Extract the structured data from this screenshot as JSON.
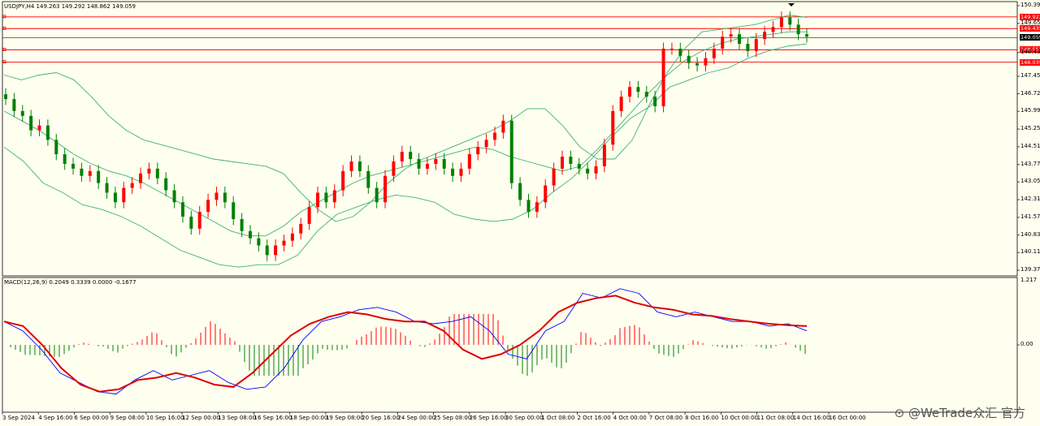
{
  "chart": {
    "title": "USDJPY,H4  149.263 149.292 148.862 149.059",
    "macd_title": "MACD(12,26,9) 0.2049 0.3339 0.0000 -0.1677",
    "watermark": "⊙ @WeTrade众汇 官方"
  },
  "colors": {
    "background": "#fffff0",
    "up_candle": "#ff0000",
    "down_candle": "#008000",
    "bands": "#3cb371",
    "hline": "#ff0000",
    "macd_line": "#0000ff",
    "signal_line": "#dd0000"
  },
  "chart_data": [
    {
      "type": "candlestick",
      "symbol": "USDJPY",
      "timeframe": "H4",
      "ylim": [
        139.37,
        150.39
      ],
      "y_ticks": [
        "150.390",
        "149.650",
        "148.435",
        "147.450",
        "146.720",
        "145.990",
        "145.250",
        "144.510",
        "143.770",
        "143.050",
        "142.310",
        "141.570",
        "140.830",
        "140.110",
        "139.370"
      ],
      "price_labels": [
        {
          "text": "149.922",
          "value": 149.922,
          "kind": "red"
        },
        {
          "text": "149.435",
          "value": 149.435,
          "kind": "red"
        },
        {
          "text": "149.059",
          "value": 149.059,
          "kind": "black"
        },
        {
          "text": "148.552",
          "value": 148.552,
          "kind": "red"
        },
        {
          "text": "148.039",
          "value": 148.039,
          "kind": "red"
        }
      ],
      "x_ticks": [
        "3 Sep 2024",
        "4 Sep 16:00",
        "6 Sep 00:00",
        "9 Sep 08:00",
        "10 Sep 16:00",
        "12 Sep 00:00",
        "13 Sep 08:00",
        "16 Sep 16:00",
        "18 Sep 00:00",
        "19 Sep 08:00",
        "20 Sep 16:00",
        "24 Sep 00:00",
        "25 Sep 08:00",
        "26 Sep 16:00",
        "30 Sep 00:00",
        "1 Oct 08:00",
        "2 Oct 16:00",
        "4 Oct 00:00",
        "7 Oct 08:00",
        "8 Oct 16:00",
        "10 Oct 00:00",
        "11 Oct 08:00",
        "14 Oct 16:00",
        "16 Oct 00:00"
      ],
      "close": [
        146.5,
        146.0,
        145.8,
        145.2,
        145.4,
        144.8,
        144.2,
        143.8,
        143.6,
        143.3,
        143.5,
        143.0,
        142.6,
        142.2,
        142.8,
        143.0,
        143.4,
        143.6,
        143.2,
        142.7,
        142.2,
        141.6,
        141.1,
        141.8,
        142.3,
        142.6,
        142.2,
        141.5,
        141.0,
        140.7,
        140.4,
        140.0,
        140.4,
        140.6,
        140.9,
        141.3,
        142.0,
        142.6,
        142.2,
        142.7,
        143.5,
        143.9,
        143.5,
        142.8,
        142.2,
        143.3,
        143.9,
        144.3,
        144.0,
        143.6,
        143.8,
        144.0,
        143.6,
        143.3,
        143.6,
        144.2,
        144.5,
        144.8,
        145.1,
        145.6,
        143.0,
        142.3,
        141.8,
        142.2,
        142.9,
        143.6,
        144.1,
        143.8,
        143.6,
        143.4,
        143.7,
        144.6,
        146.0,
        146.6,
        147.0,
        146.8,
        146.6,
        146.2,
        148.6,
        148.6,
        148.3,
        148.0,
        147.9,
        148.2,
        148.6,
        149.1,
        149.2,
        148.8,
        148.5,
        149.0,
        149.3,
        149.5,
        149.9,
        149.6,
        149.2,
        149.1
      ],
      "bb_upper": [
        147.5,
        147.3,
        147.5,
        147.6,
        147.3,
        146.6,
        145.8,
        145.2,
        144.8,
        144.6,
        144.4,
        144.2,
        144.0,
        143.9,
        143.8,
        143.7,
        143.4,
        142.6,
        141.9,
        141.4,
        141.6,
        142.2,
        143.0,
        143.6,
        144.0,
        144.3,
        144.6,
        144.9,
        145.2,
        145.6,
        146.1,
        146.1,
        145.4,
        144.5,
        144.0,
        144.0,
        144.8,
        146.3,
        147.6,
        148.6,
        149.3,
        149.4,
        149.5,
        149.6,
        149.8,
        150.0,
        149.9
      ],
      "bb_middle": [
        146.0,
        145.6,
        145.2,
        144.7,
        144.2,
        143.8,
        143.5,
        143.3,
        143.0,
        142.6,
        142.2,
        141.8,
        141.4,
        141.0,
        140.8,
        140.8,
        141.2,
        141.8,
        142.2,
        142.6,
        143.0,
        143.3,
        143.5,
        143.7,
        143.9,
        144.1,
        144.3,
        144.5,
        144.4,
        144.1,
        143.9,
        143.7,
        143.5,
        143.7,
        144.4,
        145.2,
        146.0,
        146.8,
        147.5,
        148.1,
        148.5,
        148.8,
        149.0,
        149.1,
        149.2,
        149.3,
        149.3
      ],
      "bb_lower": [
        144.5,
        143.9,
        143.0,
        142.6,
        142.1,
        141.9,
        141.6,
        141.2,
        140.7,
        140.2,
        139.9,
        139.6,
        139.5,
        139.6,
        139.6,
        140.0,
        141.0,
        141.7,
        142.0,
        142.3,
        142.5,
        142.4,
        142.2,
        141.7,
        141.5,
        141.4,
        141.5,
        141.9,
        142.6,
        143.2,
        144.0,
        144.9,
        145.7,
        146.2,
        147.0,
        147.3,
        147.6,
        147.8,
        148.2,
        148.5,
        148.7,
        148.8
      ],
      "macd_zero_label": "0.00",
      "macd_max_label": "1.217",
      "macd": [
        0.5,
        0.3,
        -0.1,
        -0.6,
        -0.8,
        -1.0,
        -1.05,
        -0.75,
        -0.55,
        -0.75,
        -0.65,
        -0.55,
        -0.8,
        -0.95,
        -0.9,
        -0.5,
        0.1,
        0.5,
        0.6,
        0.75,
        0.8,
        0.7,
        0.5,
        0.45,
        0.5,
        0.6,
        0.3,
        -0.2,
        -0.3,
        0.3,
        0.5,
        1.1,
        1.0,
        1.2,
        1.1,
        0.7,
        0.6,
        0.7,
        0.6,
        0.5,
        0.5,
        0.4,
        0.45,
        0.3
      ],
      "signal": [
        0.5,
        0.4,
        0.0,
        -0.5,
        -0.85,
        -1.0,
        -0.95,
        -0.75,
        -0.7,
        -0.6,
        -0.7,
        -0.85,
        -0.9,
        -0.6,
        -0.2,
        0.2,
        0.45,
        0.6,
        0.7,
        0.65,
        0.55,
        0.5,
        0.5,
        0.3,
        -0.1,
        -0.3,
        -0.2,
        0.0,
        0.3,
        0.7,
        0.9,
        1.0,
        1.05,
        0.9,
        0.8,
        0.75,
        0.65,
        0.62,
        0.55,
        0.5,
        0.45,
        0.42,
        0.4
      ]
    }
  ]
}
